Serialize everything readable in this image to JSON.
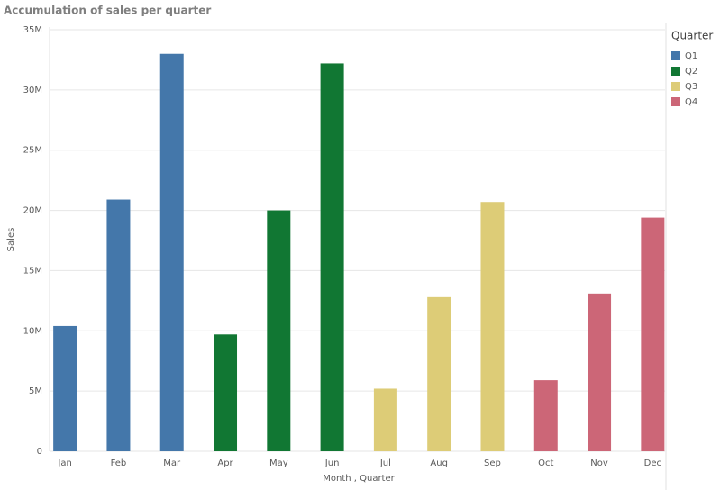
{
  "chart_data": {
    "type": "bar",
    "title": "Accumulation of sales per quarter",
    "x_label": "Month , Quarter",
    "y_label": "Sales",
    "categories": [
      "Jan",
      "Feb",
      "Mar",
      "Apr",
      "May",
      "Jun",
      "Jul",
      "Aug",
      "Sep",
      "Oct",
      "Nov",
      "Dec"
    ],
    "series": [
      {
        "name": "Q1",
        "color": "#4477aa",
        "values": [
          10400000,
          20900000,
          33000000,
          null,
          null,
          null,
          null,
          null,
          null,
          null,
          null,
          null
        ]
      },
      {
        "name": "Q2",
        "color": "#117733",
        "values": [
          null,
          null,
          null,
          9700000,
          20000000,
          32200000,
          null,
          null,
          null,
          null,
          null,
          null
        ]
      },
      {
        "name": "Q3",
        "color": "#ddcc77",
        "values": [
          null,
          null,
          null,
          null,
          null,
          null,
          5200000,
          12800000,
          20700000,
          null,
          null,
          null
        ]
      },
      {
        "name": "Q4",
        "color": "#cc6677",
        "values": [
          null,
          null,
          null,
          null,
          null,
          null,
          null,
          null,
          null,
          5900000,
          13100000,
          19400000
        ]
      }
    ],
    "legend_title": "Quarter",
    "legend": "right",
    "ylim": [
      0,
      35000000
    ],
    "yticks": [
      0,
      {
        "value": 5000000,
        "label": "5M"
      },
      {
        "value": 10000000,
        "label": "10M"
      },
      {
        "value": 15000000,
        "label": "15M"
      },
      {
        "value": 20000000,
        "label": "20M"
      },
      {
        "value": 25000000,
        "label": "25M"
      },
      {
        "value": 30000000,
        "label": "30M"
      },
      {
        "value": 35000000,
        "label": "35M"
      }
    ],
    "grid": true
  }
}
